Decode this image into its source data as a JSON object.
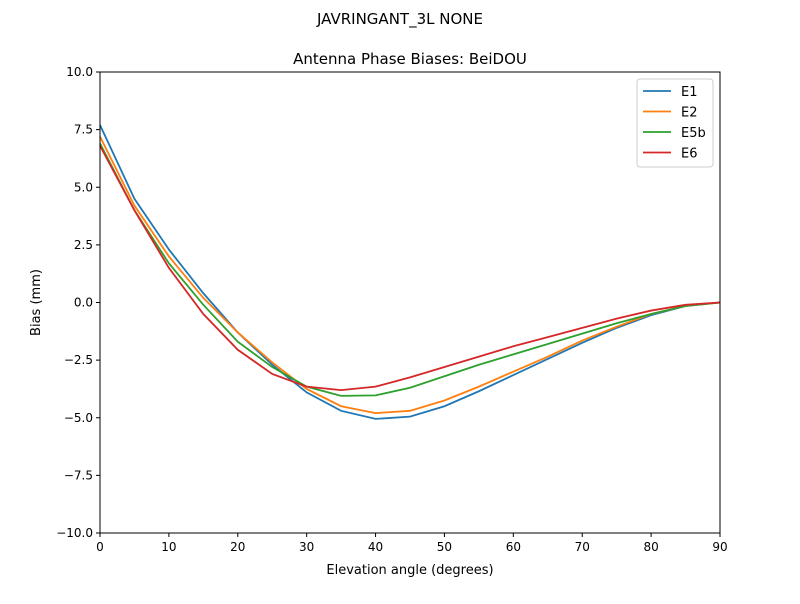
{
  "suptitle": "JAVRINGANT_3L   NONE",
  "chart_data": {
    "type": "line",
    "title": "Antenna Phase Biases: BeiDOU",
    "xlabel": "Elevation angle (degrees)",
    "ylabel": "Bias (mm)",
    "xlim": [
      0,
      90
    ],
    "ylim": [
      -10,
      10
    ],
    "xticks": [
      0,
      10,
      20,
      30,
      40,
      50,
      60,
      70,
      80,
      90
    ],
    "yticks": [
      -10.0,
      -7.5,
      -5.0,
      -2.5,
      0.0,
      2.5,
      5.0,
      7.5,
      10.0
    ],
    "ytick_labels": [
      "−10.0",
      "−7.5",
      "−5.0",
      "−2.5",
      "0.0",
      "2.5",
      "5.0",
      "7.5",
      "10.0"
    ],
    "grid": false,
    "legend_position": "top-right",
    "x": [
      0,
      5,
      10,
      15,
      20,
      25,
      30,
      35,
      40,
      45,
      50,
      55,
      60,
      65,
      70,
      75,
      80,
      85,
      90
    ],
    "series": [
      {
        "name": "E1",
        "color": "#1f77b4",
        "values": [
          7.7,
          4.5,
          2.3,
          0.4,
          -1.3,
          -2.7,
          -3.9,
          -4.7,
          -5.05,
          -4.95,
          -4.5,
          -3.85,
          -3.15,
          -2.45,
          -1.75,
          -1.1,
          -0.55,
          -0.15,
          0
        ]
      },
      {
        "name": "E2",
        "color": "#ff7f0e",
        "values": [
          7.2,
          4.2,
          2.0,
          0.2,
          -1.3,
          -2.6,
          -3.75,
          -4.5,
          -4.8,
          -4.7,
          -4.25,
          -3.65,
          -3.0,
          -2.35,
          -1.65,
          -1.05,
          -0.5,
          -0.15,
          0
        ]
      },
      {
        "name": "E5b",
        "color": "#2ca02c",
        "values": [
          6.9,
          4.0,
          1.7,
          -0.1,
          -1.7,
          -2.8,
          -3.65,
          -4.05,
          -4.03,
          -3.7,
          -3.2,
          -2.7,
          -2.25,
          -1.8,
          -1.35,
          -0.9,
          -0.5,
          -0.15,
          0
        ]
      },
      {
        "name": "E6",
        "color": "#d62728",
        "values": [
          6.8,
          4.0,
          1.5,
          -0.5,
          -2.05,
          -3.1,
          -3.65,
          -3.8,
          -3.65,
          -3.25,
          -2.8,
          -2.35,
          -1.9,
          -1.5,
          -1.1,
          -0.7,
          -0.35,
          -0.1,
          0
        ]
      }
    ]
  }
}
